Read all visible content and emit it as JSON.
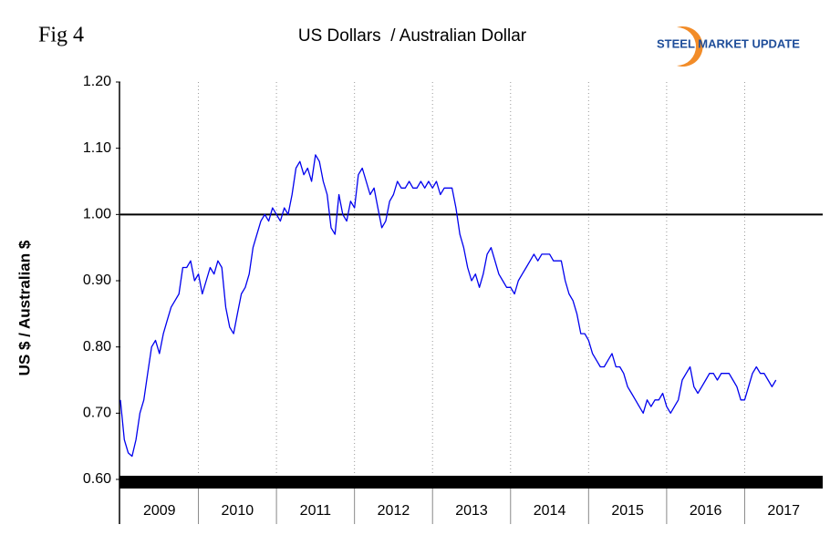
{
  "chart_data": {
    "type": "line",
    "figure_label": "Fig 4",
    "title": "US Dollars  / Australian Dollar",
    "logo": "STEEL MARKET UPDATE",
    "y_label": "US $ / Australian $",
    "categories": [
      "2009",
      "2010",
      "2011",
      "2012",
      "2013",
      "2014",
      "2015",
      "2016",
      "2017"
    ],
    "xlim": [
      2009,
      2018
    ],
    "xticks": [
      2010,
      2011,
      2012,
      2013,
      2014,
      2015,
      2016,
      2017
    ],
    "ylim": [
      0.6,
      1.2
    ],
    "yticks": [
      {
        "value": 0.6,
        "label": "0.60"
      },
      {
        "value": 0.7,
        "label": "0.70"
      },
      {
        "value": 0.8,
        "label": "0.80"
      },
      {
        "value": 0.9,
        "label": "0.90"
      },
      {
        "value": 1.0,
        "label": "1.00"
      },
      {
        "value": 1.1,
        "label": "1.10"
      },
      {
        "value": 1.2,
        "label": "1.20"
      }
    ],
    "reference_line": 1.0,
    "grid": true,
    "series": [
      {
        "name": "US $ / Australian $",
        "color": "#0000ee",
        "x": [
          2009.0,
          2009.05,
          2009.1,
          2009.15,
          2009.2,
          2009.25,
          2009.3,
          2009.35,
          2009.4,
          2009.45,
          2009.5,
          2009.55,
          2009.6,
          2009.65,
          2009.7,
          2009.75,
          2009.8,
          2009.85,
          2009.9,
          2009.95,
          2010.0,
          2010.05,
          2010.1,
          2010.15,
          2010.2,
          2010.25,
          2010.3,
          2010.35,
          2010.4,
          2010.45,
          2010.5,
          2010.55,
          2010.6,
          2010.65,
          2010.7,
          2010.75,
          2010.8,
          2010.85,
          2010.9,
          2010.95,
          2011.0,
          2011.05,
          2011.1,
          2011.15,
          2011.2,
          2011.25,
          2011.3,
          2011.35,
          2011.4,
          2011.45,
          2011.5,
          2011.55,
          2011.6,
          2011.65,
          2011.7,
          2011.75,
          2011.8,
          2011.85,
          2011.9,
          2011.95,
          2012.0,
          2012.05,
          2012.1,
          2012.15,
          2012.2,
          2012.25,
          2012.3,
          2012.35,
          2012.4,
          2012.45,
          2012.5,
          2012.55,
          2012.6,
          2012.65,
          2012.7,
          2012.75,
          2012.8,
          2012.85,
          2012.9,
          2012.95,
          2013.0,
          2013.05,
          2013.1,
          2013.15,
          2013.2,
          2013.25,
          2013.3,
          2013.35,
          2013.4,
          2013.45,
          2013.5,
          2013.55,
          2013.6,
          2013.65,
          2013.7,
          2013.75,
          2013.8,
          2013.85,
          2013.9,
          2013.95,
          2014.0,
          2014.05,
          2014.1,
          2014.15,
          2014.2,
          2014.25,
          2014.3,
          2014.35,
          2014.4,
          2014.45,
          2014.5,
          2014.55,
          2014.6,
          2014.65,
          2014.7,
          2014.75,
          2014.8,
          2014.85,
          2014.9,
          2014.95,
          2015.0,
          2015.05,
          2015.1,
          2015.15,
          2015.2,
          2015.25,
          2015.3,
          2015.35,
          2015.4,
          2015.45,
          2015.5,
          2015.55,
          2015.6,
          2015.65,
          2015.7,
          2015.75,
          2015.8,
          2015.85,
          2015.9,
          2015.95,
          2016.0,
          2016.05,
          2016.1,
          2016.15,
          2016.2,
          2016.25,
          2016.3,
          2016.35,
          2016.4,
          2016.45,
          2016.5,
          2016.55,
          2016.6,
          2016.65,
          2016.7,
          2016.75,
          2016.8,
          2016.85,
          2016.9,
          2016.95,
          2017.0,
          2017.05,
          2017.1,
          2017.15,
          2017.2,
          2017.25,
          2017.3,
          2017.35,
          2017.4
        ],
        "values": [
          0.72,
          0.66,
          0.64,
          0.635,
          0.66,
          0.7,
          0.72,
          0.76,
          0.8,
          0.81,
          0.79,
          0.82,
          0.84,
          0.86,
          0.87,
          0.88,
          0.92,
          0.92,
          0.93,
          0.9,
          0.91,
          0.88,
          0.9,
          0.92,
          0.91,
          0.93,
          0.92,
          0.86,
          0.83,
          0.82,
          0.85,
          0.88,
          0.89,
          0.91,
          0.95,
          0.97,
          0.99,
          1.0,
          0.99,
          1.01,
          1.0,
          0.99,
          1.01,
          1.0,
          1.03,
          1.07,
          1.08,
          1.06,
          1.07,
          1.05,
          1.09,
          1.08,
          1.05,
          1.03,
          0.98,
          0.97,
          1.03,
          1.0,
          0.99,
          1.02,
          1.01,
          1.06,
          1.07,
          1.05,
          1.03,
          1.04,
          1.01,
          0.98,
          0.99,
          1.02,
          1.03,
          1.05,
          1.04,
          1.04,
          1.05,
          1.04,
          1.04,
          1.05,
          1.04,
          1.05,
          1.04,
          1.05,
          1.03,
          1.04,
          1.04,
          1.04,
          1.01,
          0.97,
          0.95,
          0.92,
          0.9,
          0.91,
          0.89,
          0.91,
          0.94,
          0.95,
          0.93,
          0.91,
          0.9,
          0.89,
          0.89,
          0.88,
          0.9,
          0.91,
          0.92,
          0.93,
          0.94,
          0.93,
          0.94,
          0.94,
          0.94,
          0.93,
          0.93,
          0.93,
          0.9,
          0.88,
          0.87,
          0.85,
          0.82,
          0.82,
          0.81,
          0.79,
          0.78,
          0.77,
          0.77,
          0.78,
          0.79,
          0.77,
          0.77,
          0.76,
          0.74,
          0.73,
          0.72,
          0.71,
          0.7,
          0.72,
          0.71,
          0.72,
          0.72,
          0.73,
          0.71,
          0.7,
          0.71,
          0.72,
          0.75,
          0.76,
          0.77,
          0.74,
          0.73,
          0.74,
          0.75,
          0.76,
          0.76,
          0.75,
          0.76,
          0.76,
          0.76,
          0.75,
          0.74,
          0.72,
          0.72,
          0.74,
          0.76,
          0.77,
          0.76,
          0.76,
          0.75,
          0.74,
          0.75
        ]
      }
    ]
  }
}
